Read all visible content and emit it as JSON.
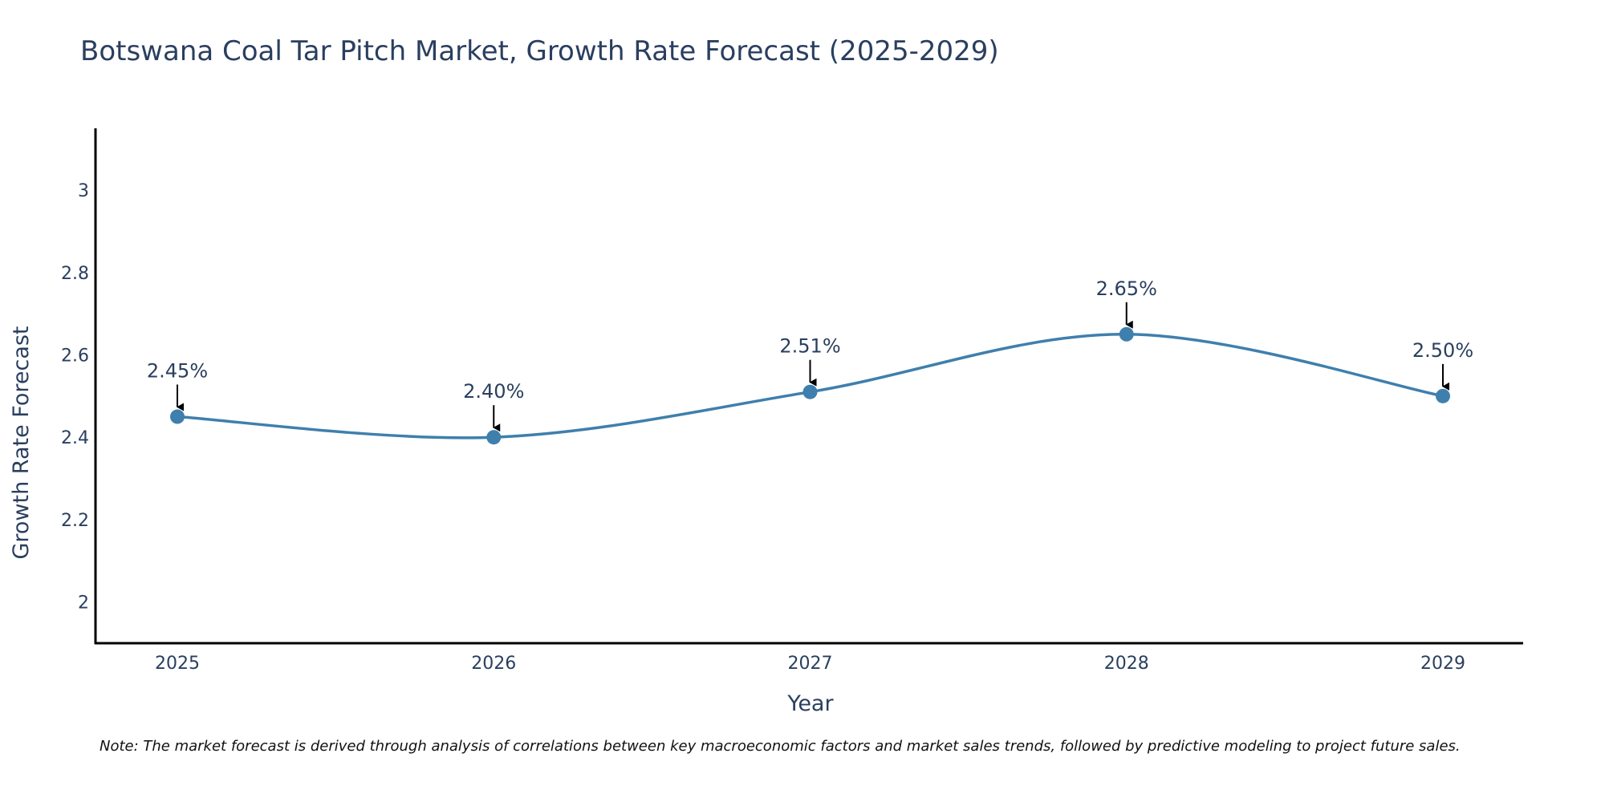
{
  "chart_data": {
    "type": "line",
    "title": "Botswana Coal Tar Pitch Market, Growth Rate Forecast (2025-2029)",
    "xlabel": "Year",
    "ylabel": "Growth Rate Forecast",
    "x": [
      "2025",
      "2026",
      "2027",
      "2028",
      "2029"
    ],
    "series": [
      {
        "name": "Growth Rate Forecast",
        "values": [
          2.45,
          2.4,
          2.51,
          2.65,
          2.5
        ],
        "labels": [
          "2.45%",
          "2.40%",
          "2.51%",
          "2.65%",
          "2.50%"
        ],
        "color": "#3f7fad"
      }
    ],
    "ylim": [
      1.9,
      3.15
    ],
    "yticks": [
      2,
      2.2,
      2.4,
      2.6,
      2.8,
      3
    ],
    "ytick_labels": [
      "2",
      "2.2",
      "2.4",
      "2.6",
      "2.8",
      "3"
    ],
    "grid": false,
    "line_shape": "spline",
    "note": "Note: The market forecast is derived through analysis of correlations between key macroeconomic factors and market sales trends, followed by predictive modeling to project future sales."
  }
}
